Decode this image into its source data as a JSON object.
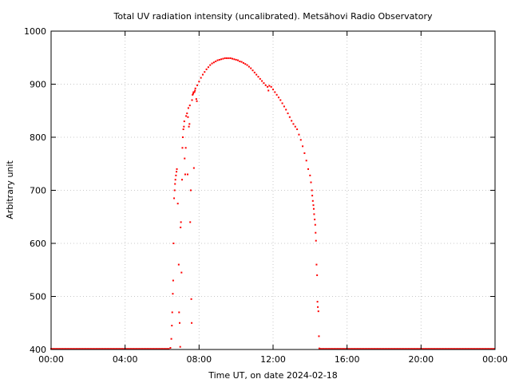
{
  "chart_data": {
    "type": "scatter",
    "title": "Total UV radiation intensity (uncalibrated). Metsähovi Radio Observatory",
    "xlabel": "Time UT, on date 2024-02-18",
    "ylabel": "Arbitrary unit",
    "xlim": [
      0,
      24
    ],
    "ylim": [
      400,
      1000
    ],
    "x_ticks": [
      {
        "value": 0,
        "label": "00:00"
      },
      {
        "value": 4,
        "label": "04:00"
      },
      {
        "value": 8,
        "label": "08:00"
      },
      {
        "value": 12,
        "label": "12:00"
      },
      {
        "value": 16,
        "label": "16:00"
      },
      {
        "value": 20,
        "label": "20:00"
      },
      {
        "value": 24,
        "label": "00:00"
      }
    ],
    "y_ticks": [
      {
        "value": 400,
        "label": "400"
      },
      {
        "value": 500,
        "label": "500"
      },
      {
        "value": 600,
        "label": "600"
      },
      {
        "value": 700,
        "label": "700"
      },
      {
        "value": 800,
        "label": "800"
      },
      {
        "value": 900,
        "label": "900"
      },
      {
        "value": 1000,
        "label": "1000"
      }
    ],
    "grid": true,
    "marker_color": "#ff0000",
    "series": [
      {
        "points": [
          [
            6.45,
            403
          ],
          [
            6.5,
            420
          ],
          [
            6.53,
            445
          ],
          [
            6.55,
            470
          ],
          [
            6.58,
            505
          ],
          [
            6.6,
            530
          ],
          [
            6.62,
            600
          ],
          [
            6.65,
            685
          ],
          [
            6.68,
            700
          ],
          [
            6.7,
            712
          ],
          [
            6.72,
            720
          ],
          [
            6.75,
            728
          ],
          [
            6.78,
            735
          ],
          [
            6.8,
            740
          ],
          [
            6.85,
            675
          ],
          [
            6.9,
            560
          ],
          [
            6.92,
            470
          ],
          [
            6.95,
            450
          ],
          [
            6.98,
            405
          ],
          [
            7.0,
            630
          ],
          [
            7.02,
            640
          ],
          [
            7.05,
            545
          ],
          [
            7.08,
            720
          ],
          [
            7.1,
            780
          ],
          [
            7.12,
            800
          ],
          [
            7.15,
            815
          ],
          [
            7.18,
            820
          ],
          [
            7.2,
            830
          ],
          [
            7.22,
            760
          ],
          [
            7.25,
            730
          ],
          [
            7.28,
            780
          ],
          [
            7.3,
            840
          ],
          [
            7.35,
            845
          ],
          [
            7.38,
            730
          ],
          [
            7.4,
            838
          ],
          [
            7.42,
            855
          ],
          [
            7.45,
            820
          ],
          [
            7.48,
            825
          ],
          [
            7.5,
            860
          ],
          [
            7.52,
            640
          ],
          [
            7.55,
            700
          ],
          [
            7.58,
            495
          ],
          [
            7.6,
            450
          ],
          [
            7.62,
            870
          ],
          [
            7.65,
            880
          ],
          [
            7.68,
            882
          ],
          [
            7.7,
            885
          ],
          [
            7.72,
            742
          ],
          [
            7.75,
            885
          ],
          [
            7.78,
            888
          ],
          [
            7.8,
            892
          ],
          [
            7.85,
            872
          ],
          [
            7.88,
            868
          ],
          [
            7.9,
            898
          ],
          [
            8.0,
            905
          ],
          [
            8.1,
            912
          ],
          [
            8.2,
            918
          ],
          [
            8.3,
            923
          ],
          [
            8.4,
            928
          ],
          [
            8.5,
            932
          ],
          [
            8.6,
            936
          ],
          [
            8.7,
            939
          ],
          [
            8.8,
            941
          ],
          [
            8.9,
            943
          ],
          [
            9.0,
            945
          ],
          [
            9.1,
            946
          ],
          [
            9.2,
            947
          ],
          [
            9.3,
            948
          ],
          [
            9.4,
            949
          ],
          [
            9.5,
            949
          ],
          [
            9.6,
            949
          ],
          [
            9.7,
            949
          ],
          [
            9.8,
            948
          ],
          [
            9.9,
            947
          ],
          [
            10.0,
            946
          ],
          [
            10.1,
            945
          ],
          [
            10.2,
            943
          ],
          [
            10.3,
            942
          ],
          [
            10.4,
            940
          ],
          [
            10.5,
            938
          ],
          [
            10.6,
            936
          ],
          [
            10.7,
            933
          ],
          [
            10.8,
            930
          ],
          [
            10.9,
            926
          ],
          [
            11.0,
            922
          ],
          [
            11.1,
            918
          ],
          [
            11.2,
            914
          ],
          [
            11.3,
            910
          ],
          [
            11.4,
            906
          ],
          [
            11.5,
            902
          ],
          [
            11.6,
            898
          ],
          [
            11.7,
            895
          ],
          [
            11.75,
            888
          ],
          [
            11.8,
            897
          ],
          [
            11.9,
            895
          ],
          [
            12.0,
            890
          ],
          [
            12.1,
            885
          ],
          [
            12.2,
            880
          ],
          [
            12.3,
            875
          ],
          [
            12.4,
            870
          ],
          [
            12.5,
            864
          ],
          [
            12.6,
            858
          ],
          [
            12.7,
            852
          ],
          [
            12.8,
            845
          ],
          [
            12.9,
            838
          ],
          [
            13.0,
            831
          ],
          [
            13.1,
            825
          ],
          [
            13.2,
            820
          ],
          [
            13.3,
            815
          ],
          [
            13.4,
            805
          ],
          [
            13.5,
            795
          ],
          [
            13.6,
            783
          ],
          [
            13.7,
            770
          ],
          [
            13.8,
            756
          ],
          [
            13.9,
            740
          ],
          [
            14.0,
            728
          ],
          [
            14.05,
            715
          ],
          [
            14.1,
            700
          ],
          [
            14.12,
            690
          ],
          [
            14.15,
            680
          ],
          [
            14.18,
            672
          ],
          [
            14.2,
            665
          ],
          [
            14.22,
            655
          ],
          [
            14.25,
            645
          ],
          [
            14.28,
            635
          ],
          [
            14.3,
            620
          ],
          [
            14.32,
            605
          ],
          [
            14.35,
            560
          ],
          [
            14.38,
            540
          ],
          [
            14.4,
            490
          ],
          [
            14.42,
            480
          ],
          [
            14.45,
            472
          ],
          [
            14.48,
            425
          ],
          [
            14.5,
            402
          ],
          [
            14.55,
            401
          ]
        ]
      }
    ],
    "baseline": {
      "value": 401,
      "from": [
        0,
        6.4
      ],
      "to": [
        14.6,
        24
      ]
    }
  }
}
